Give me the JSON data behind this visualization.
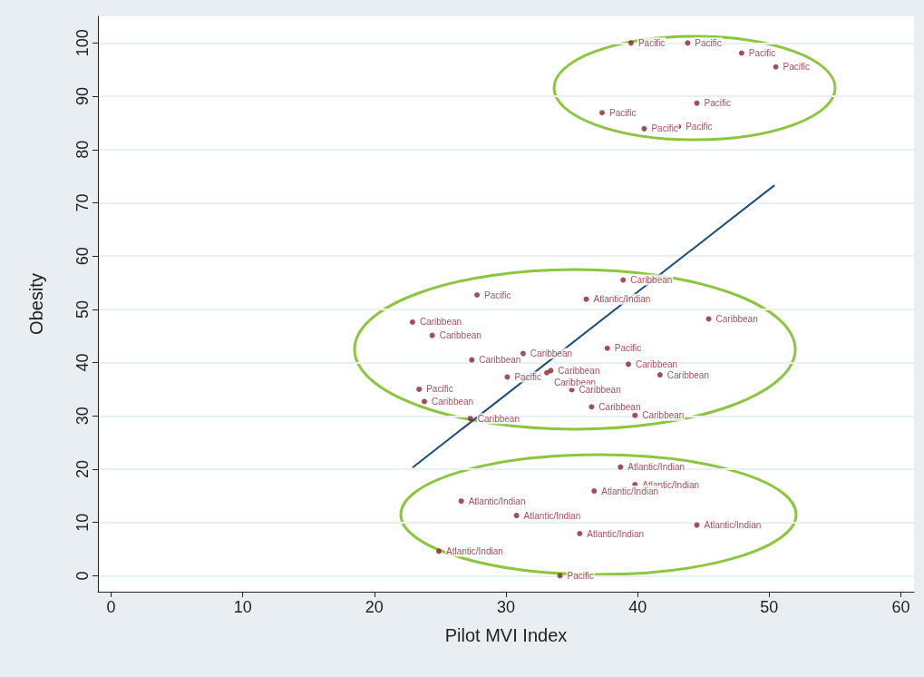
{
  "chart_data": {
    "type": "scatter",
    "xlabel": "Pilot MVI Index",
    "ylabel": "Obesity",
    "xlim": [
      -1,
      61
    ],
    "ylim": [
      -3,
      105
    ],
    "xticks": [
      0,
      10,
      20,
      30,
      40,
      50,
      60
    ],
    "yticks": [
      0,
      10,
      20,
      30,
      40,
      50,
      60,
      70,
      80,
      90,
      100
    ],
    "grid": "y",
    "series": [
      {
        "marker": "circle",
        "color": "#8b2332",
        "x": [
          39.5,
          43.8,
          47.9,
          50.5,
          44.5,
          37.3,
          40.5,
          43.1,
          38.9,
          27.8,
          36.1,
          22.9,
          45.4,
          24.4,
          37.7,
          31.3,
          27.4,
          39.3,
          41.7,
          33.4,
          33.1,
          30.1,
          23.4,
          35.0,
          23.8,
          36.5,
          39.8,
          27.3,
          38.7,
          39.8,
          36.7,
          26.6,
          30.8,
          44.5,
          35.6,
          24.9,
          34.1
        ],
        "values": [
          100,
          100,
          98.1,
          95.5,
          88.7,
          86.9,
          83.9,
          84.3,
          55.5,
          52.7,
          51.9,
          47.6,
          48.2,
          45.1,
          42.7,
          41.7,
          40.5,
          39.7,
          37.7,
          38.5,
          38.1,
          37.3,
          35.0,
          34.9,
          32.7,
          31.7,
          30.1,
          29.5,
          20.4,
          17.1,
          15.9,
          14.0,
          11.3,
          9.5,
          7.9,
          4.6,
          0
        ],
        "value_labels": [
          "Pacific",
          "Pacific",
          "Pacific",
          "Pacific",
          "Pacific",
          "Pacific",
          "Pacific",
          "Pacific",
          "Caribbean",
          "Pacific",
          "Atlantic/Indian",
          "Caribbean",
          "Caribbean",
          "Caribbean",
          "Pacific",
          "Caribbean",
          "Caribbean",
          "Caribbean",
          "Caribbean",
          "Caribbean",
          "Caribbean",
          "Pacific",
          "Pacific",
          "Caribbean",
          "Caribbean",
          "Caribbean",
          "Caribbean",
          "Caribbean",
          "Atlantic/Indian",
          "Atlantic/Indian",
          "Atlantic/Indian",
          "Atlantic/Indian",
          "Atlantic/Indian",
          "Atlantic/Indian",
          "Atlantic/Indian",
          "Atlantic/Indian",
          "Pacific"
        ]
      },
      {
        "type": "line",
        "marker": "none",
        "color": "#1f4e79",
        "x": [
          22.9,
          50.4
        ],
        "values": [
          20.3,
          73.3
        ]
      }
    ]
  }
}
